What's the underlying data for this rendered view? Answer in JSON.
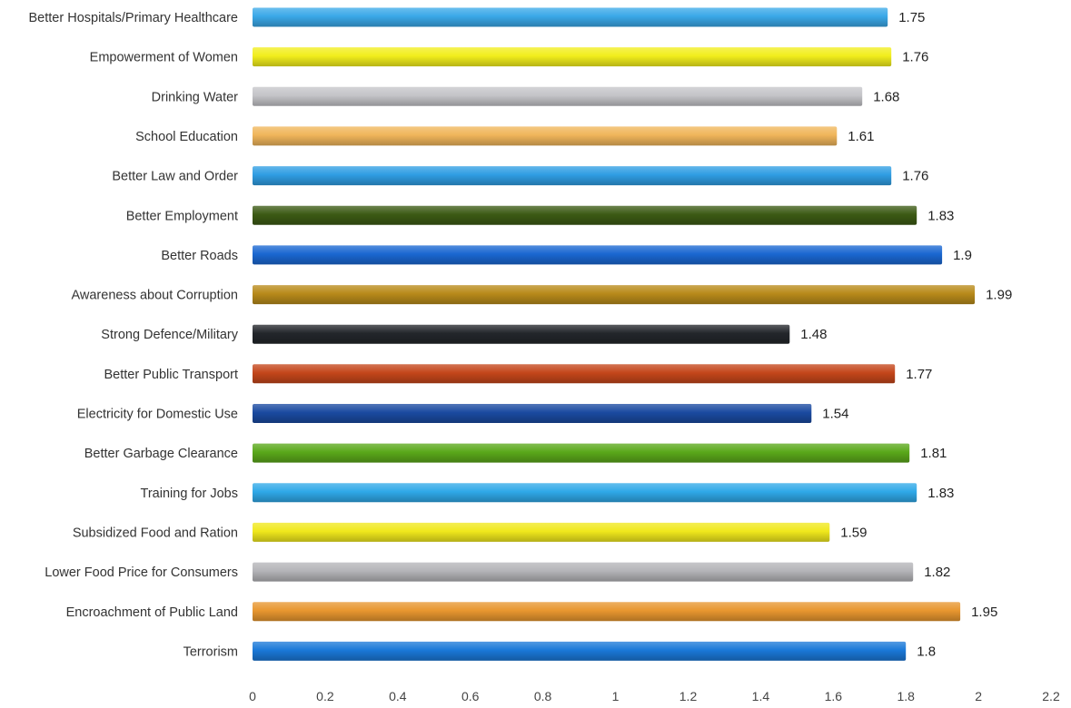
{
  "chart_data": {
    "type": "bar",
    "orientation": "horizontal",
    "title": "",
    "xlabel": "",
    "ylabel": "",
    "xlim": [
      0,
      2.2
    ],
    "xticks": [
      0,
      0.2,
      0.4,
      0.6,
      0.8,
      1,
      1.2,
      1.4,
      1.6,
      1.8,
      2,
      2.2
    ],
    "xtick_labels": [
      "0",
      "0.2",
      "0.4",
      "0.6",
      "0.8",
      "1",
      "1.2",
      "1.4",
      "1.6",
      "1.8",
      "2",
      "2.2"
    ],
    "grid": false,
    "legend": "none",
    "categories": [
      "Better Hospitals/Primary Healthcare",
      "Empowerment of Women",
      "Drinking Water",
      "School Education",
      "Better Law and Order",
      "Better Employment",
      "Better Roads",
      "Awareness about Corruption",
      "Strong Defence/Military",
      "Better Public Transport",
      "Electricity for Domestic Use",
      "Better Garbage Clearance",
      "Training for Jobs",
      "Subsidized Food and Ration",
      "Lower Food Price for Consumers",
      "Encroachment of Public Land",
      "Terrorism"
    ],
    "values": [
      1.75,
      1.76,
      1.68,
      1.61,
      1.76,
      1.83,
      1.9,
      1.99,
      1.48,
      1.77,
      1.54,
      1.81,
      1.83,
      1.59,
      1.82,
      1.95,
      1.8
    ],
    "value_labels": [
      "1.75",
      "1.76",
      "1.68",
      "1.61",
      "1.76",
      "1.83",
      "1.9",
      "1.99",
      "1.48",
      "1.77",
      "1.54",
      "1.81",
      "1.83",
      "1.59",
      "1.82",
      "1.95",
      "1.8"
    ],
    "bar_colors": [
      "#3aa8e8",
      "#f2ee1c",
      "#c4c4c8",
      "#f0b55a",
      "#2f9de3",
      "#3c5a14",
      "#1a67d1",
      "#b88a1a",
      "#23262b",
      "#c4461a",
      "#1a4aa0",
      "#5aa81a",
      "#2fa8e8",
      "#f0e81c",
      "#b4b4b8",
      "#e8962f",
      "#1a78d8"
    ]
  }
}
